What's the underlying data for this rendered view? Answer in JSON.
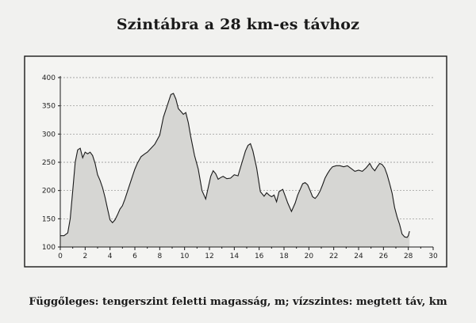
{
  "title": "Szintábra a 28 km-es távhoz",
  "caption": "Függőleges: tengerszint feletti magasság, m; vízszintes: megtett táv, km",
  "chart_data": {
    "type": "area",
    "title": "Szintábra a 28 km-es távhoz",
    "xlabel": "",
    "ylabel": "",
    "xlim": [
      0,
      30
    ],
    "ylim": [
      100,
      400
    ],
    "xticks": [
      0,
      2,
      4,
      6,
      8,
      10,
      12,
      14,
      16,
      18,
      20,
      22,
      24,
      26,
      28,
      30
    ],
    "yticks": [
      100,
      150,
      200,
      250,
      300,
      350,
      400
    ],
    "grid": "horizontal dashed",
    "colors": {
      "fill": "#d6d6d3",
      "line": "#1a1a1a",
      "background": "#f3f3f1"
    },
    "series": [
      {
        "x": [
          0,
          0.3,
          0.6,
          0.8,
          1.0,
          1.2,
          1.4,
          1.6,
          1.8,
          2.0,
          2.2,
          2.4,
          2.6,
          2.8,
          3.0,
          3.2,
          3.4,
          3.6,
          3.8,
          4.0,
          4.2,
          4.4,
          4.6,
          4.8,
          5.0,
          5.2,
          5.5,
          5.8,
          6.0,
          6.2,
          6.5,
          6.8,
          7.0,
          7.3,
          7.6,
          8.0,
          8.3,
          8.6,
          8.9,
          9.1,
          9.3,
          9.5,
          9.7,
          9.9,
          10.1,
          10.3,
          10.5,
          10.8,
          11.1,
          11.4,
          11.7,
          11.9,
          12.1,
          12.3,
          12.5,
          12.7,
          12.9,
          13.1,
          13.4,
          13.7,
          14.0,
          14.3,
          14.6,
          14.9,
          15.1,
          15.3,
          15.5,
          15.8,
          16.1,
          16.4,
          16.6,
          16.8,
          17.0,
          17.2,
          17.4,
          17.6,
          17.9,
          18.1,
          18.3,
          18.6,
          18.9,
          19.1,
          19.3,
          19.5,
          19.7,
          19.9,
          20.1,
          20.3,
          20.5,
          20.7,
          20.9,
          21.1,
          21.3,
          21.5,
          21.7,
          21.9,
          22.2,
          22.5,
          22.8,
          23.1,
          23.4,
          23.7,
          24.0,
          24.3,
          24.6,
          24.9,
          25.1,
          25.3,
          25.5,
          25.7,
          25.9,
          26.1,
          26.3,
          26.5,
          26.7,
          26.9,
          27.1,
          27.3,
          27.5,
          27.7,
          27.9,
          28.0,
          28.1
        ],
        "y": [
          120,
          120,
          125,
          150,
          200,
          250,
          272,
          275,
          258,
          268,
          265,
          268,
          262,
          248,
          228,
          218,
          205,
          188,
          168,
          148,
          143,
          148,
          157,
          167,
          173,
          185,
          205,
          225,
          238,
          248,
          260,
          265,
          268,
          275,
          282,
          298,
          330,
          350,
          370,
          372,
          362,
          345,
          340,
          335,
          338,
          320,
          295,
          262,
          238,
          200,
          185,
          205,
          225,
          235,
          230,
          220,
          223,
          225,
          221,
          222,
          228,
          226,
          248,
          270,
          280,
          283,
          270,
          240,
          198,
          190,
          196,
          192,
          189,
          192,
          180,
          198,
          202,
          190,
          178,
          163,
          178,
          192,
          202,
          212,
          214,
          210,
          200,
          189,
          186,
          191,
          199,
          210,
          222,
          230,
          237,
          242,
          244,
          244,
          242,
          244,
          239,
          234,
          236,
          234,
          240,
          248,
          240,
          235,
          242,
          248,
          246,
          240,
          228,
          212,
          195,
          170,
          153,
          140,
          123,
          118,
          117,
          120,
          128
        ]
      }
    ]
  }
}
